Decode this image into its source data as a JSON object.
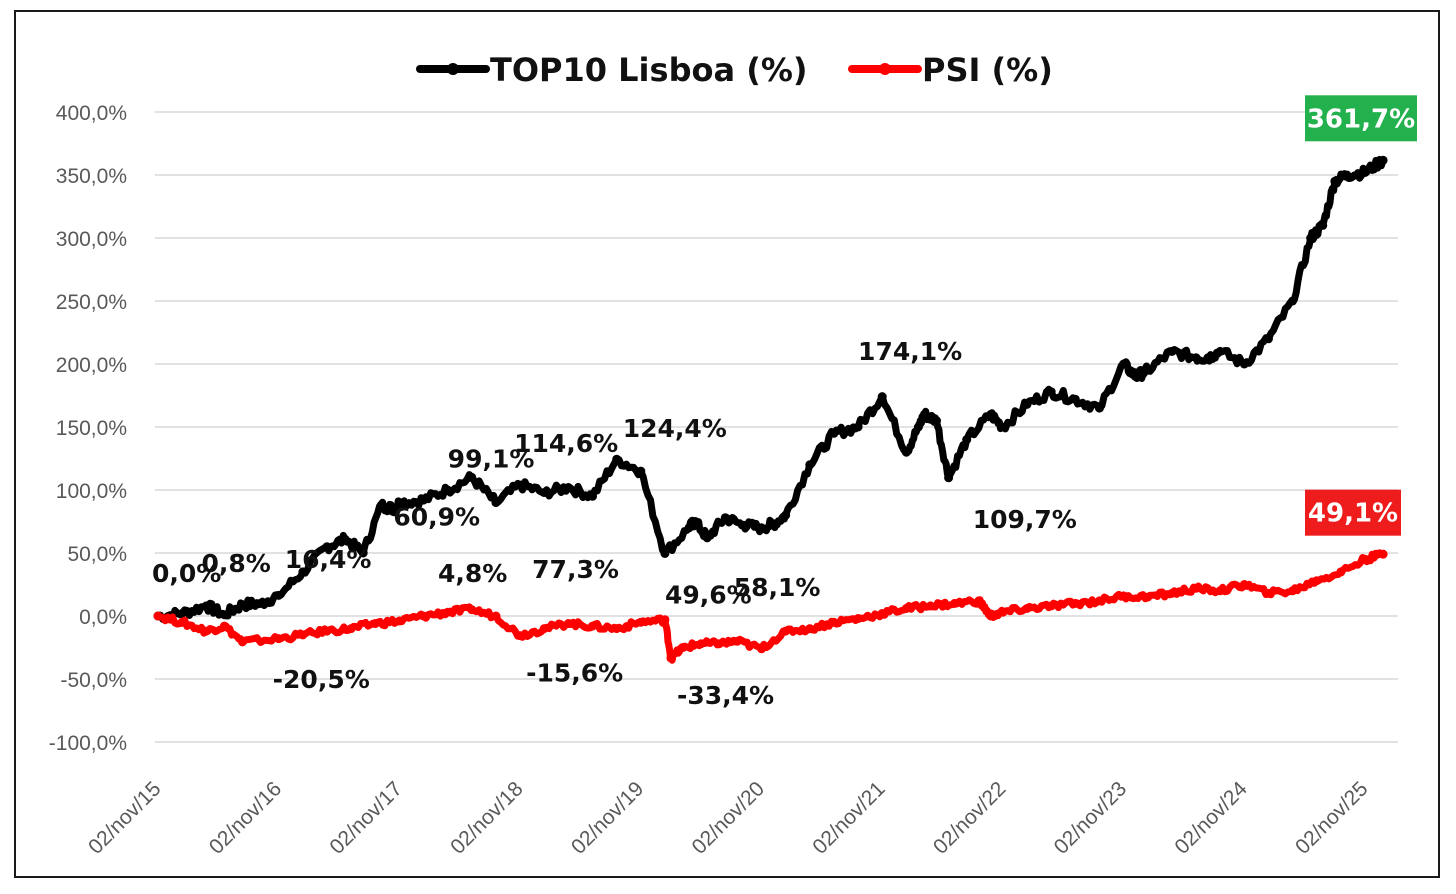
{
  "chart_data": {
    "type": "line",
    "title": "",
    "xlabel": "",
    "ylabel": "",
    "ylim": [
      -100,
      400
    ],
    "yticks": [
      -100,
      -50,
      0,
      50,
      100,
      150,
      200,
      250,
      300,
      350,
      400
    ],
    "ytick_labels": [
      "-100,0%",
      "-50,0%",
      "0,0%",
      "50,0%",
      "100,0%",
      "150,0%",
      "200,0%",
      "250,0%",
      "300,0%",
      "350,0%",
      "400,0%"
    ],
    "xlim": [
      0,
      10.2
    ],
    "xticks": [
      0,
      1,
      2,
      3,
      4,
      5,
      6,
      7,
      8,
      9,
      10
    ],
    "xtick_labels": [
      "02/nov/15",
      "02/nov/16",
      "02/nov/17",
      "02/nov/18",
      "02/nov/19",
      "02/nov/20",
      "02/nov/21",
      "02/nov/22",
      "02/nov/23",
      "02/nov/24",
      "02/nov/25"
    ],
    "grid": true,
    "legend_position": "top",
    "series": [
      {
        "name": "TOP10 Lisboa (%)",
        "color": "#000000",
        "x": [
          0,
          0.2,
          0.4,
          0.55,
          0.7,
          0.85,
          1.0,
          1.2,
          1.4,
          1.55,
          1.7,
          1.85,
          1.95,
          2.0,
          2.2,
          2.4,
          2.6,
          2.8,
          3.0,
          3.2,
          3.4,
          3.6,
          3.8,
          4.0,
          4.2,
          4.4,
          4.45,
          4.55,
          4.7,
          4.85,
          5.0,
          5.1,
          5.2,
          5.4,
          5.6,
          5.8,
          6.0,
          6.2,
          6.3,
          6.35,
          6.45,
          6.55,
          6.7,
          6.9,
          7.0,
          7.2,
          7.4,
          7.6,
          7.8,
          8.0,
          8.1,
          8.2,
          8.4,
          8.6,
          8.7,
          8.8,
          9.0,
          9.2,
          9.4,
          9.55,
          9.65,
          9.75,
          9.85,
          10.0,
          10.15
        ],
        "values": [
          0.0,
          2,
          8,
          1,
          9,
          10,
          16.4,
          35,
          55,
          60.9,
          50,
          88,
          85,
          90,
          92,
          100,
          110,
          90,
          104,
          98,
          102,
          95,
          124.4,
          115,
          49.6,
          70,
          75,
          62,
          78,
          72,
          70,
          73,
          80,
          120,
          145,
          150,
          174.1,
          130,
          150,
          160,
          155,
          109.7,
          140,
          160,
          150,
          168,
          178,
          172,
          165,
          200,
          190,
          195,
          210,
          205,
          205,
          210,
          200,
          220,
          250,
          300,
          310,
          345,
          350,
          352,
          361.7
        ]
      },
      {
        "name": "PSI (%)",
        "color": "#ff0000",
        "x": [
          0,
          0.2,
          0.4,
          0.55,
          0.7,
          1.0,
          1.2,
          1.4,
          1.6,
          1.8,
          2.0,
          2.2,
          2.4,
          2.6,
          2.8,
          3.0,
          3.2,
          3.4,
          3.6,
          3.8,
          4.0,
          4.2,
          4.25,
          4.35,
          4.5,
          4.65,
          4.8,
          5.0,
          5.2,
          5.4,
          5.6,
          5.8,
          6.0,
          6.2,
          6.4,
          6.6,
          6.8,
          6.9,
          7.0,
          7.2,
          7.4,
          7.6,
          7.8,
          8.0,
          8.2,
          8.4,
          8.6,
          8.8,
          9.0,
          9.2,
          9.4,
          9.6,
          9.8,
          10.0,
          10.15
        ],
        "values": [
          0.0,
          -5,
          -12,
          -8,
          -20.5,
          -18,
          -15,
          -12,
          -10,
          -6,
          -4,
          0,
          3,
          5,
          0,
          -15.6,
          -10,
          -6,
          -8,
          -10,
          -5,
          -3,
          -33.4,
          -25,
          -22,
          -22,
          -20,
          -26,
          -12,
          -10,
          -5,
          -2,
          2,
          6,
          8,
          10,
          12,
          0,
          3,
          6,
          8,
          10,
          12,
          16,
          15,
          18,
          22,
          20,
          25,
          18,
          20,
          28,
          35,
          45,
          49.1
        ]
      }
    ],
    "annotations": [
      {
        "text": "0,0%",
        "x": -0.05,
        "y": 27
      },
      {
        "text": "0,8%",
        "x": 0.36,
        "y": 35
      },
      {
        "text": "16,4%",
        "x": 1.05,
        "y": 38
      },
      {
        "text": "-20,5%",
        "x": 0.95,
        "y": -57
      },
      {
        "text": "60,9%",
        "x": 1.95,
        "y": 72
      },
      {
        "text": "4,8%",
        "x": 2.32,
        "y": 27
      },
      {
        "text": "99,1%",
        "x": 2.4,
        "y": 118
      },
      {
        "text": "114,6%",
        "x": 2.95,
        "y": 130
      },
      {
        "text": "77,3%",
        "x": 3.1,
        "y": 30
      },
      {
        "text": "-15,6%",
        "x": 3.05,
        "y": -52
      },
      {
        "text": "124,4%",
        "x": 3.85,
        "y": 142
      },
      {
        "text": "49,6%",
        "x": 4.2,
        "y": 10
      },
      {
        "text": "58,1%",
        "x": 4.77,
        "y": 16
      },
      {
        "text": "-33,4%",
        "x": 4.3,
        "y": -70
      },
      {
        "text": "174,1%",
        "x": 5.8,
        "y": 203
      },
      {
        "text": "109,7%",
        "x": 6.75,
        "y": 70
      }
    ],
    "end_labels": [
      {
        "text": "361,7%",
        "series": 0,
        "bg": "#22b14c",
        "y": 395
      },
      {
        "text": "49,1%",
        "series": 1,
        "bg": "#ee1c1c",
        "y": 82
      }
    ]
  }
}
